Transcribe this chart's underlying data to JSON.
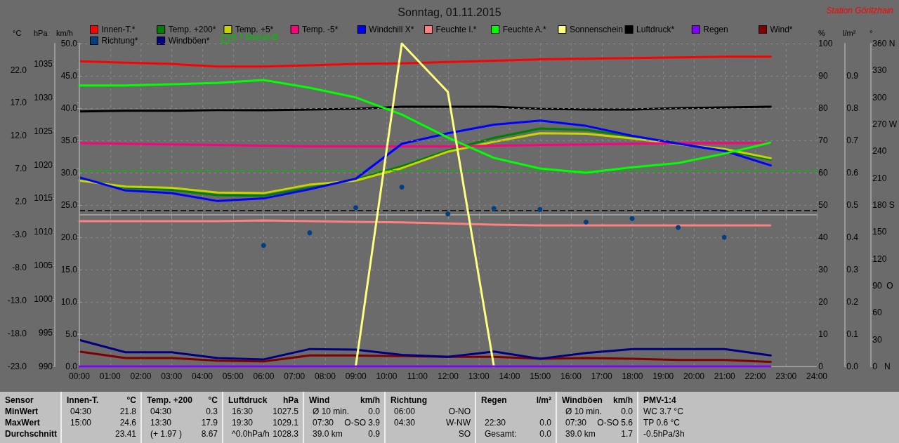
{
  "chart_data": [
    {
      "type": "line",
      "title": "Sonntag, 01.11.2015",
      "ylabel": "°C",
      "y2label": "hPa",
      "y3label": "km/h",
      "xlim": [
        0,
        24
      ],
      "xticks": [
        {
          "value": 0,
          "label": "00:00"
        },
        {
          "value": 1,
          "label": "01:00"
        },
        {
          "value": 2,
          "label": "02:00"
        },
        {
          "value": 3,
          "label": "03:00"
        },
        {
          "value": 4,
          "label": "04:00"
        },
        {
          "value": 5,
          "label": "05:00"
        },
        {
          "value": 6,
          "label": "06:00"
        },
        {
          "value": 7,
          "label": "07:00"
        },
        {
          "value": 8,
          "label": "08:00"
        },
        {
          "value": 9,
          "label": "09:00"
        },
        {
          "value": 10,
          "label": "10:00"
        },
        {
          "value": 11,
          "label": "11:00"
        },
        {
          "value": 12,
          "label": "12:00"
        },
        {
          "value": 13,
          "label": "13:00"
        },
        {
          "value": 14,
          "label": "14:00"
        },
        {
          "value": 15,
          "label": "15:00"
        },
        {
          "value": 16,
          "label": "16:00"
        },
        {
          "value": 17,
          "label": "17:00"
        },
        {
          "value": 18,
          "label": "18:00"
        },
        {
          "value": 19,
          "label": "19:00"
        },
        {
          "value": 20,
          "label": "20:00"
        },
        {
          "value": 21,
          "label": "21:00"
        },
        {
          "value": 22,
          "label": "22:00"
        },
        {
          "value": 23,
          "label": "23:00"
        },
        {
          "value": 24,
          "label": "24:00"
        }
      ],
      "ylim": [
        -23,
        26
      ],
      "yticks": [
        {
          "value": -23,
          "label": "-23.0"
        },
        {
          "value": -18,
          "label": "-18.0"
        },
        {
          "value": -13,
          "label": "-13.0"
        },
        {
          "value": -8,
          "label": "-8.0"
        },
        {
          "value": -3,
          "label": "-3.0"
        },
        {
          "value": 2,
          "label": "2.0"
        },
        {
          "value": 7,
          "label": "7.0"
        },
        {
          "value": 12,
          "label": "12.0"
        },
        {
          "value": 17,
          "label": "17.0"
        },
        {
          "value": 22,
          "label": "22.0"
        }
      ],
      "y2lim": [
        990,
        1038
      ],
      "y2ticks": [
        990,
        995,
        1000,
        1005,
        1010,
        1015,
        1020,
        1025,
        1030,
        1035
      ],
      "y3lim": [
        0,
        50
      ],
      "y3ticks": [
        {
          "value": 0,
          "label": "0.0"
        },
        {
          "value": 5,
          "label": "5.0"
        },
        {
          "value": 10,
          "label": "10.0"
        },
        {
          "value": 15,
          "label": "15.0"
        },
        {
          "value": 20,
          "label": "20.0"
        },
        {
          "value": 25,
          "label": "25.0"
        },
        {
          "value": 30,
          "label": "30.0"
        },
        {
          "value": 35,
          "label": "35.0"
        },
        {
          "value": 40,
          "label": "40.0"
        },
        {
          "value": 45,
          "label": "45.0"
        },
        {
          "value": 50,
          "label": "50.0"
        }
      ],
      "x": [
        0,
        1.5,
        3,
        4.5,
        6,
        7.5,
        9,
        10.5,
        12,
        13.5,
        15,
        16.5,
        18,
        19.5,
        21,
        22.5
      ],
      "series": [
        {
          "name": "Innen-T.*",
          "color": "#ff0000",
          "values": [
            23.3,
            23.1,
            22.9,
            22.5,
            22.5,
            22.7,
            22.9,
            23.0,
            23.2,
            23.4,
            23.6,
            23.7,
            23.8,
            23.9,
            24.0,
            24.0
          ]
        },
        {
          "name": "Temp. +200*",
          "color": "#008000",
          "values": [
            5.5,
            4.1,
            3.8,
            3.0,
            2.9,
            4.1,
            5.4,
            7.4,
            9.8,
            11.7,
            13.1,
            12.9,
            11.9,
            10.9,
            9.8,
            8.4
          ]
        },
        {
          "name": "Temp. +5*",
          "color": "#c8d400",
          "values": [
            5.2,
            4.3,
            4.1,
            3.4,
            3.3,
            4.6,
            5.2,
            7.1,
            9.6,
            11.1,
            12.4,
            12.3,
            11.6,
            10.7,
            10.0,
            8.6
          ]
        },
        {
          "name": "Temp. -5*",
          "color": "#ff0080",
          "values": [
            10.9,
            10.8,
            10.7,
            10.6,
            10.5,
            10.4,
            10.4,
            10.4,
            10.4,
            10.5,
            10.6,
            10.7,
            10.8,
            10.9,
            10.9,
            10.9
          ]
        },
        {
          "name": "Windchill X*",
          "color": "#0000ff",
          "values": [
            5.7,
            3.7,
            3.3,
            2.1,
            2.5,
            3.9,
            5.5,
            10.8,
            12.4,
            13.7,
            14.3,
            13.5,
            12.0,
            10.8,
            9.7,
            7.5
          ]
        },
        {
          "name": "Luftdruck*",
          "color": "#000000",
          "axis": "y2",
          "values": [
            1027.9,
            1028.0,
            1028.0,
            1028.1,
            1028.1,
            1028.2,
            1028.3,
            1028.6,
            1028.6,
            1028.6,
            1028.3,
            1028.2,
            1028.2,
            1028.4,
            1028.5,
            1028.6
          ]
        },
        {
          "name": "Wind*",
          "color": "#800000",
          "axis": "y3",
          "values": [
            2.3,
            1.3,
            1.3,
            0.9,
            0.8,
            1.7,
            1.7,
            1.6,
            1.5,
            1.5,
            1.2,
            1.3,
            1.2,
            1.0,
            1.0,
            0.7
          ]
        },
        {
          "name": "Windböen*",
          "color": "#000080",
          "axis": "y3",
          "values": [
            4.1,
            2.2,
            2.2,
            1.3,
            1.1,
            2.7,
            2.6,
            1.8,
            1.5,
            2.3,
            1.2,
            2.1,
            2.7,
            2.7,
            2.7,
            1.7
          ]
        }
      ],
      "ref_lines": [
        {
          "axis": "y",
          "value": 6.7,
          "label": "6.7 Monat-Ø",
          "color": "#00c000",
          "line_style": "dashed"
        },
        {
          "axis": "y",
          "value": 0.7,
          "color": "#000000",
          "line_style": "dashed"
        }
      ],
      "marker": "none",
      "grid": "x",
      "legend": "top",
      "annotations": [
        "Station Göritzhain",
        "Sensor",
        "MinWert",
        "MaxWert",
        "Durchschnitt",
        "Innen-T.",
        "°C",
        "04:30",
        "21.8",
        "15:00",
        "24.6",
        "23.41",
        "Temp. +200",
        "°C",
        "04:30",
        "0.3",
        "13:30",
        "17.9",
        "(+ 1.97 )",
        "8.67",
        "Luftdruck",
        "hPa",
        "16:30",
        "1027.5",
        "19:30",
        "1029.1",
        "^0.0hPa/h",
        "1028.3",
        "Wind",
        "km/h",
        "Ø 10 min.",
        "0.0",
        "07:30",
        "O-SO 3.9",
        "39.0 km",
        "0.9",
        "Richtung",
        "06:00",
        "O-NO",
        "04:30",
        "W-NW",
        "SO",
        "Regen",
        "l/m²",
        "22:30",
        "0.0",
        "Gesamt:",
        "0.0",
        "Windböen",
        "km/h",
        "Ø 10 min.",
        "0.0",
        "07:30",
        "O-SO 5.6",
        "39.0 km",
        "1.7",
        "PMV-1:4",
        "WC 3.7 °C",
        "TP 0.6 °C",
        "-0.5hPa/3h"
      ]
    },
    {
      "type": "line",
      "ylabel": "%",
      "y2label": "l/m²",
      "y3label": "°",
      "xlim": [
        0,
        24
      ],
      "tick_labels": "y",
      "ylim": [
        0,
        100
      ],
      "yticks": [
        0,
        10,
        20,
        30,
        40,
        50,
        60,
        70,
        80,
        90,
        100
      ],
      "y2lim": [
        0,
        1
      ],
      "y2ticks": [
        {
          "value": 0,
          "label": "0.0"
        },
        0.1,
        0.2,
        0.3,
        0.4,
        0.5,
        0.6,
        0.7,
        0.8,
        0.9
      ],
      "y3lim": [
        0,
        360
      ],
      "y3ticks": [
        {
          "value": 0,
          "label": "0   N"
        },
        30,
        60,
        {
          "value": 90,
          "label": "90  O"
        },
        120,
        150,
        {
          "value": 180,
          "label": "180 S"
        },
        210,
        240,
        {
          "value": 270,
          "label": "270 W"
        },
        300,
        330,
        {
          "value": 360,
          "label": "360 N"
        }
      ],
      "x": [
        0,
        1.5,
        3,
        4.5,
        6,
        7.5,
        9,
        10.5,
        12,
        13.5,
        15,
        16.5,
        18,
        19.5,
        21,
        22.5
      ],
      "series": [
        {
          "name": "Feuchte I.*",
          "color": "#ff8080",
          "values": [
            45.0,
            45.0,
            45.0,
            45.0,
            45.2,
            45.0,
            44.8,
            44.6,
            44.3,
            43.9,
            43.7,
            43.7,
            43.7,
            43.7,
            43.7,
            43.7
          ]
        },
        {
          "name": "Feuchte A.*",
          "color": "#00ff00",
          "values": [
            87.0,
            87.0,
            87.4,
            87.8,
            88.7,
            86.3,
            83.3,
            78.0,
            70.9,
            64.6,
            61.3,
            60.0,
            61.7,
            63.0,
            65.9,
            69.3
          ]
        },
        {
          "name": "Sonnenschein",
          "color": "#ffff80",
          "x": [
            9,
            10.5,
            11,
            12,
            13.5
          ],
          "values": [
            0,
            100,
            95,
            85,
            0
          ]
        },
        {
          "name": "Regen",
          "color": "#8000ff",
          "axis": "y2",
          "values": [
            0,
            0,
            0,
            0,
            0,
            0,
            0,
            0,
            0,
            0,
            0,
            0,
            0,
            0,
            0,
            0
          ]
        },
        {
          "name": "Richtung*",
          "color": "#004080",
          "axis": "y3",
          "type": "scatter",
          "marker": "circle",
          "x": [
            6,
            7.5,
            9,
            10.5,
            12,
            13.5,
            15,
            16.5,
            18,
            19.5,
            21
          ],
          "values": [
            135,
            149,
            177,
            200,
            170,
            176,
            175,
            161,
            165,
            155,
            144
          ]
        }
      ],
      "marker": "none",
      "grid": "y",
      "legend": "top"
    }
  ]
}
